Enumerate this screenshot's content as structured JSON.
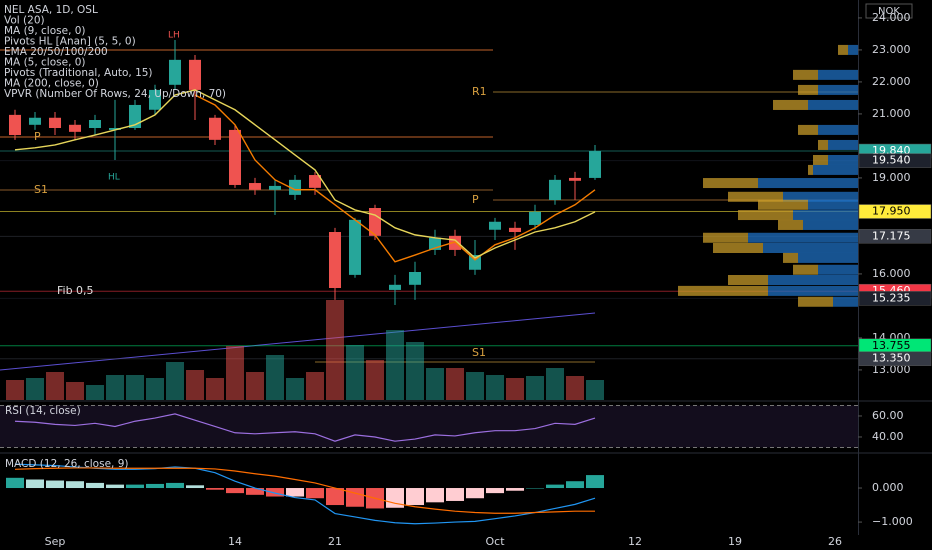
{
  "chart_data": [
    {
      "type": "candlestick",
      "title": "NEL ASA, 1D, OSL",
      "currency": "NOK",
      "categories": [
        null,
        null,
        "Sep",
        null,
        null,
        null,
        null,
        null,
        null,
        null,
        null,
        "14",
        null,
        null,
        null,
        null,
        "21",
        null,
        null,
        null,
        null,
        null,
        null,
        null,
        "Oct",
        null,
        null,
        null,
        null,
        null,
        null,
        "12",
        null,
        null,
        null,
        null,
        "19",
        null,
        null,
        null,
        null,
        "26",
        null
      ],
      "open": [
        20.97,
        20.66,
        20.88,
        20.66,
        20.56,
        20.5,
        20.56,
        21.13,
        21.91,
        22.69,
        20.88,
        20.5,
        18.84,
        18.63,
        18.47,
        19.09,
        17.31,
        15.97,
        18.06,
        15.5,
        15.66,
        16.75,
        17.19,
        16.13,
        17.38,
        17.44,
        17.53,
        18.31,
        19.0,
        19.0,
        null,
        null,
        null,
        null,
        null,
        null,
        null,
        null,
        null,
        null,
        null,
        null,
        null
      ],
      "high": [
        21.13,
        21.06,
        21.06,
        20.81,
        20.97,
        21.44,
        21.44,
        21.91,
        23.31,
        22.84,
        20.97,
        20.66,
        19.0,
        18.94,
        19.09,
        19.19,
        17.44,
        17.75,
        18.16,
        15.97,
        16.38,
        17.38,
        17.38,
        17.06,
        17.75,
        17.63,
        18.16,
        19.09,
        19.19,
        20.03,
        null,
        null,
        null,
        null,
        null,
        null,
        null,
        null,
        null,
        null,
        null,
        null,
        null
      ],
      "low": [
        20.19,
        20.5,
        20.34,
        20.19,
        20.34,
        19.56,
        20.5,
        20.97,
        21.75,
        20.81,
        20.03,
        18.69,
        18.47,
        17.84,
        18.31,
        18.47,
        15.19,
        15.88,
        17.06,
        15.03,
        15.19,
        16.59,
        16.56,
        15.97,
        17.06,
        16.75,
        17.38,
        18.16,
        18.31,
        18.94,
        null,
        null,
        null,
        null,
        null,
        null,
        null,
        null,
        null,
        null,
        null,
        null,
        null
      ],
      "close": [
        20.34,
        20.88,
        20.56,
        20.44,
        20.81,
        20.56,
        21.28,
        21.75,
        22.69,
        21.75,
        20.19,
        18.78,
        18.63,
        18.75,
        18.94,
        18.69,
        15.56,
        17.69,
        17.19,
        15.66,
        16.06,
        17.13,
        16.75,
        16.59,
        17.63,
        17.31,
        17.94,
        18.94,
        18.91,
        19.84,
        null,
        null,
        null,
        null,
        null,
        null,
        null,
        null,
        null,
        null,
        null,
        null,
        null
      ],
      "up_color": "#26a69a",
      "down_color": "#ef5350",
      "volume": {
        "values": [
          1.0,
          1.1,
          1.4,
          0.9,
          0.75,
          1.25,
          1.25,
          1.1,
          1.9,
          1.5,
          1.1,
          2.7,
          1.4,
          2.25,
          1.1,
          1.4,
          5.0,
          2.75,
          2.0,
          3.5,
          2.9,
          1.6,
          1.6,
          1.4,
          1.25,
          1.1,
          1.2,
          1.6,
          1.2,
          1.0,
          null,
          null,
          null,
          null,
          null,
          null,
          null,
          null,
          null,
          null,
          null,
          null,
          null
        ],
        "ylim": [
          0,
          20
        ]
      },
      "series": [
        {
          "name": "MA (9, close, 0)",
          "color": "#f57c00",
          "values": [
            null,
            null,
            null,
            null,
            null,
            null,
            null,
            null,
            null,
            21.59,
            21.28,
            20.66,
            19.56,
            18.94,
            18.63,
            18.63,
            18.16,
            17.69,
            17.22,
            16.38,
            16.59,
            16.81,
            17.0,
            16.44,
            16.91,
            17.13,
            17.44,
            17.84,
            18.16,
            18.63,
            null,
            null,
            null,
            null,
            null,
            null,
            null,
            null,
            null,
            null,
            null,
            null,
            null
          ]
        },
        {
          "name": "MA (5, close, 0)",
          "color": "#e6d55a",
          "values": [
            19.88,
            19.94,
            20.03,
            20.19,
            20.34,
            20.5,
            20.66,
            20.97,
            21.59,
            21.75,
            21.44,
            21.13,
            20.66,
            20.19,
            19.72,
            19.25,
            18.31,
            18.0,
            17.84,
            17.44,
            17.22,
            17.13,
            17.06,
            16.5,
            16.81,
            17.06,
            17.31,
            17.44,
            17.63,
            17.94,
            null,
            null,
            null,
            null,
            null,
            null,
            null,
            null,
            null,
            null,
            null,
            null,
            null
          ]
        }
      ],
      "indicators": [
        "Vol (20)",
        "Pivots HL [Anan] (5, 5, 0)",
        "EMA 20/50/100/200",
        "Pivots (Traditional, Auto, 15)",
        "MA (200, close, 0)",
        "VPVR (Number Of Rows, 24, Up/Down, 70)"
      ],
      "annotations": [
        "LH",
        "HL",
        "R1",
        "P",
        "S1",
        "P",
        "S1",
        "Fib 0,5"
      ],
      "ylim": [
        12.06,
        24.56
      ],
      "yticks": [
        {
          "value": 24,
          "label": "24.000"
        },
        {
          "value": 23,
          "label": "23.000"
        },
        {
          "value": 22,
          "label": "22.000"
        },
        {
          "value": 21,
          "label": "21.000"
        },
        {
          "value": 19,
          "label": "19.000"
        },
        {
          "value": 16,
          "label": "16.000"
        },
        {
          "value": 14,
          "label": "14.000"
        },
        {
          "value": 13,
          "label": "13.000"
        }
      ],
      "marked_prices": [
        {
          "value": 19.84,
          "label": "19.840",
          "color": "#26a69a",
          "text_color": "#ffffff"
        },
        {
          "value": 19.54,
          "label": "19.540",
          "color": "#1e222d",
          "text_color": "#ffffff"
        },
        {
          "value": 17.95,
          "label": "17.950",
          "color": "#ffeb3b",
          "text_color": "#000000"
        },
        {
          "value": 17.175,
          "label": "17.175",
          "color": "#363a45",
          "text_color": "#ffffff"
        },
        {
          "value": 15.46,
          "label": "15.460",
          "color": "#f23645",
          "text_color": "#ffffff"
        },
        {
          "value": 15.235,
          "label": "15.235",
          "color": "#1e222d",
          "text_color": "#ffffff"
        },
        {
          "value": 13.755,
          "label": "13.755",
          "color": "#00e676",
          "text_color": "#000000"
        },
        {
          "value": 13.35,
          "label": "13.350",
          "color": "#363a45",
          "text_color": "#ffffff"
        }
      ],
      "volume_profile": {
        "price": [
          23.0,
          22.22,
          21.75,
          21.28,
          20.5,
          20.03,
          19.56,
          19.25,
          18.84,
          18.41,
          18.16,
          17.84,
          17.53,
          17.13,
          16.81,
          16.5,
          16.13,
          15.81,
          15.47,
          15.13
        ],
        "up": [
          1,
          4,
          4,
          5,
          4,
          3,
          3,
          4.5,
          10,
          7.5,
          5,
          6.5,
          5.5,
          11,
          9.5,
          6,
          4,
          9,
          9,
          2.5
        ],
        "down": [
          1,
          2.5,
          2,
          3.5,
          2,
          1,
          1.5,
          0.5,
          5.5,
          5.5,
          5,
          5.5,
          2.5,
          4.5,
          5,
          1.5,
          2.5,
          4,
          9,
          3.5
        ],
        "up_color": "#1f6fc0",
        "down_color": "#c59a2a"
      }
    },
    {
      "type": "line",
      "title": "RSI (14, close)",
      "color": "#9c6fe0",
      "values": [
        55,
        54,
        52,
        51,
        53,
        50,
        55,
        58,
        62,
        56,
        50,
        44,
        43,
        44,
        45,
        43,
        36,
        42,
        40,
        36,
        38,
        42,
        41,
        44,
        46,
        46,
        48,
        53,
        52,
        58,
        null,
        null,
        null,
        null,
        null,
        null,
        null,
        null,
        null,
        null,
        null,
        null,
        null
      ],
      "band": [
        30,
        70
      ],
      "band_color": "#7e57c2",
      "ylim": [
        25.7,
        73.3
      ],
      "yticks": [
        {
          "value": 40,
          "label": "40.00"
        },
        {
          "value": 60,
          "label": "60.00"
        }
      ]
    },
    {
      "type": "bar",
      "title": "MACD (12, 26, close, 9)",
      "values": [
        0.3,
        0.25,
        0.22,
        0.2,
        0.15,
        0.1,
        0.1,
        0.12,
        0.15,
        0.08,
        -0.05,
        -0.15,
        -0.2,
        -0.25,
        -0.25,
        -0.3,
        -0.5,
        -0.55,
        -0.6,
        -0.58,
        -0.5,
        -0.42,
        -0.38,
        -0.3,
        -0.15,
        -0.08,
        0.0,
        0.1,
        0.2,
        0.38,
        null,
        null,
        null,
        null,
        null,
        null,
        null,
        null,
        null,
        null,
        null,
        null,
        null
      ],
      "colors": {
        "up_rising": "#26a69a",
        "up_falling": "#b2dfdb",
        "down_falling": "#ef5350",
        "down_rising": "#ffcdd2"
      },
      "lines": [
        {
          "color": "#2196f3",
          "values": [
            0.7,
            0.68,
            0.66,
            0.62,
            0.58,
            0.55,
            0.55,
            0.57,
            0.62,
            0.58,
            0.45,
            0.2,
            0.0,
            -0.15,
            -0.28,
            -0.35,
            -0.75,
            -0.85,
            -0.95,
            -1.02,
            -1.05,
            -1.03,
            -1.0,
            -0.98,
            -0.9,
            -0.82,
            -0.72,
            -0.6,
            -0.48,
            -0.3,
            null,
            null,
            null,
            null,
            null,
            null,
            null,
            null,
            null,
            null,
            null,
            null,
            null
          ]
        },
        {
          "color": "#ff6d00",
          "values": [
            0.55,
            0.57,
            0.58,
            0.59,
            0.59,
            0.58,
            0.58,
            0.58,
            0.58,
            0.58,
            0.56,
            0.5,
            0.42,
            0.35,
            0.25,
            0.15,
            0.0,
            -0.15,
            -0.3,
            -0.45,
            -0.55,
            -0.62,
            -0.68,
            -0.72,
            -0.74,
            -0.74,
            -0.72,
            -0.7,
            -0.68,
            -0.68,
            null,
            null,
            null,
            null,
            null,
            null,
            null,
            null,
            null,
            null,
            null,
            null,
            null
          ]
        }
      ],
      "ylim": [
        -1.38,
        0.97
      ],
      "yticks": [
        {
          "value": 0,
          "label": "0.000"
        },
        {
          "value": -1,
          "label": "−1.000"
        }
      ]
    }
  ]
}
